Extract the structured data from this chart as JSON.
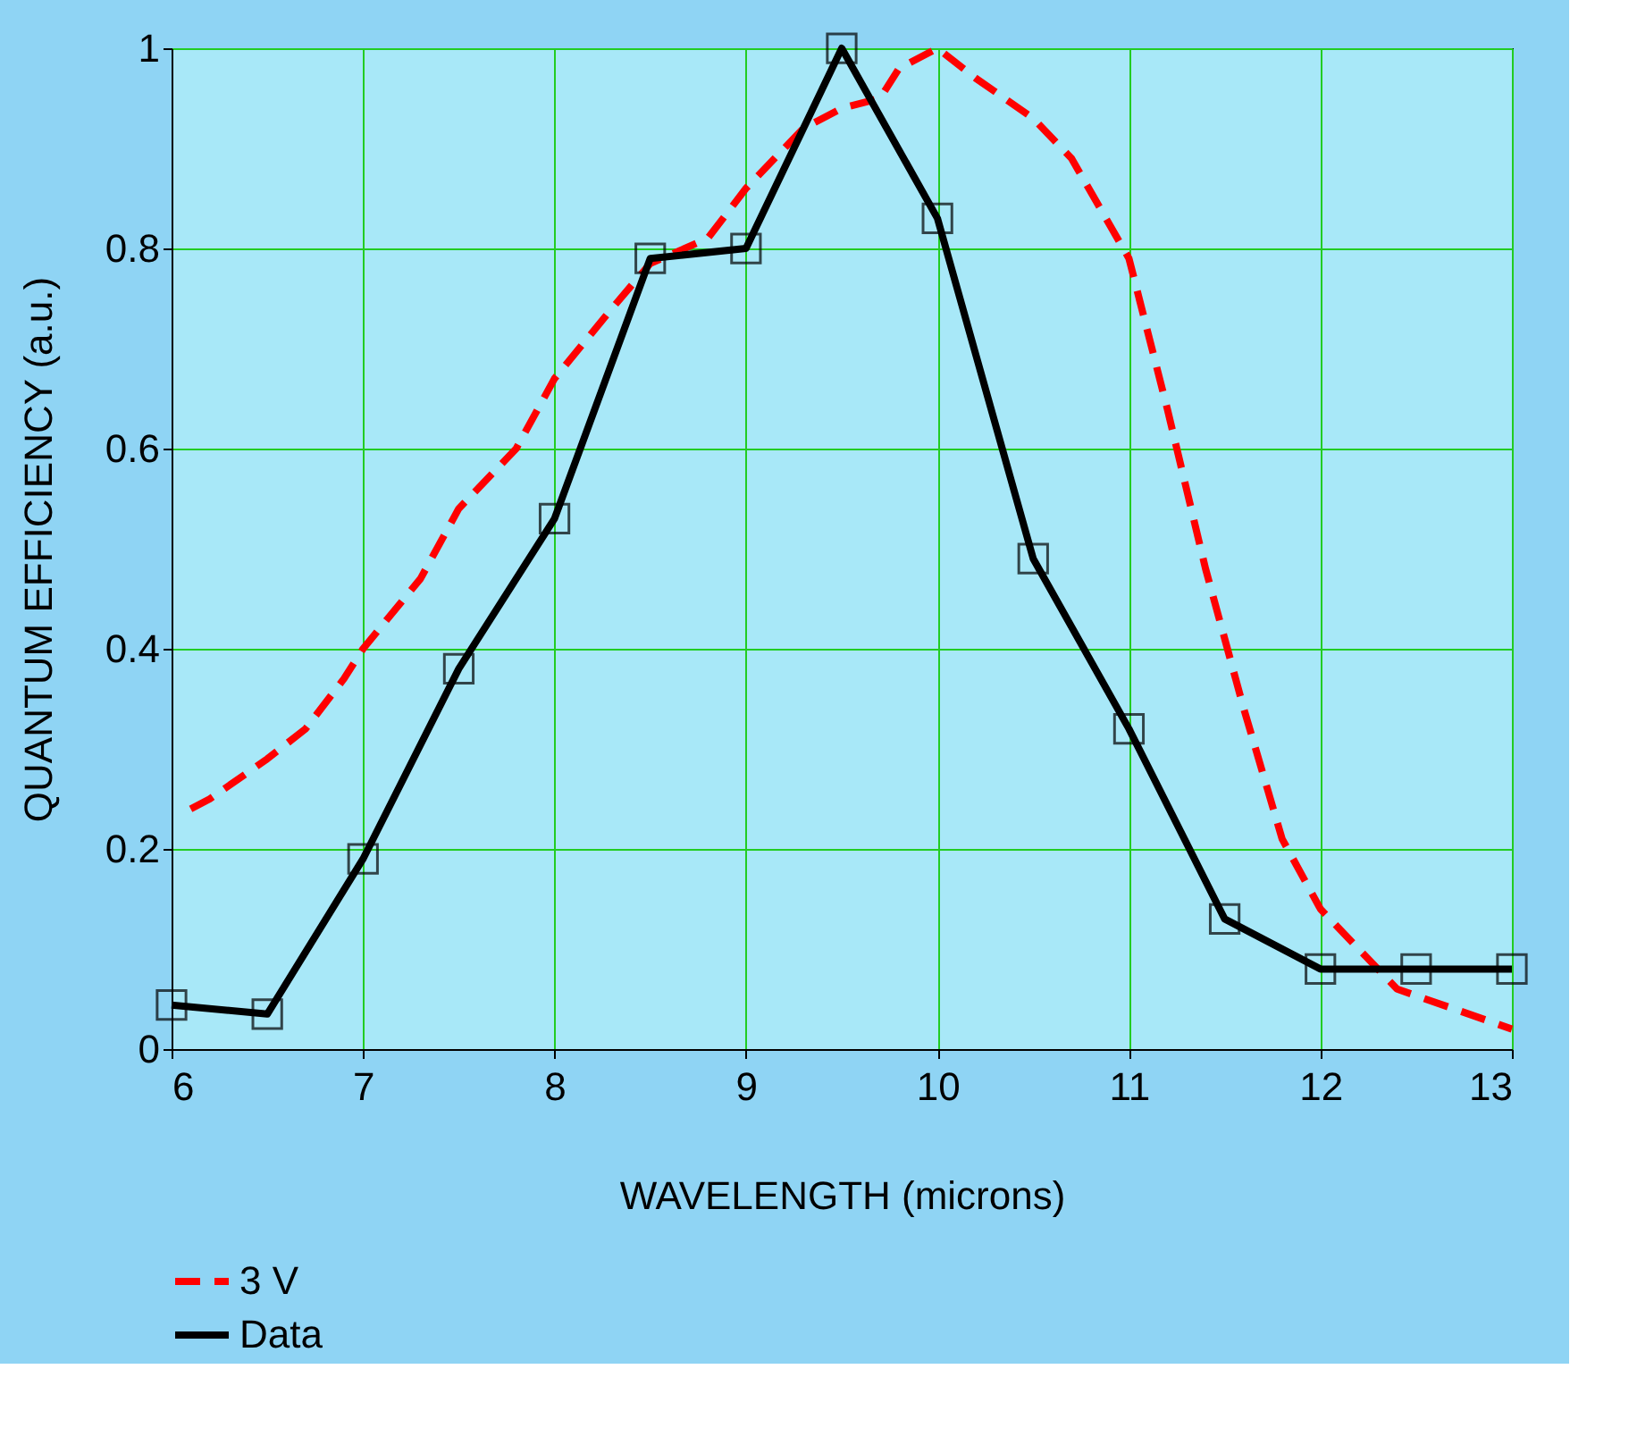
{
  "chart_data": {
    "type": "line",
    "xlabel": "WAVELENGTH (microns)",
    "ylabel": "QUANTUM EFFICIENCY (a.u.)",
    "xlim": [
      6,
      13
    ],
    "ylim": [
      0,
      1
    ],
    "xticks": [
      6,
      7,
      8,
      9,
      10,
      11,
      12,
      13
    ],
    "yticks": [
      0,
      0.2,
      0.4,
      0.6,
      0.8,
      1
    ],
    "grid": true,
    "legend": "bottom left",
    "series": [
      {
        "name": "3 V",
        "color": "#ff0000",
        "line_style": "dashed",
        "marker": "none",
        "x": [
          6.1,
          6.2,
          6.5,
          6.7,
          6.9,
          7.0,
          7.3,
          7.5,
          7.8,
          8.0,
          8.3,
          8.5,
          8.8,
          9.0,
          9.3,
          9.5,
          9.7,
          9.8,
          10.0,
          10.2,
          10.5,
          10.7,
          11.0,
          11.2,
          11.4,
          11.6,
          11.8,
          12.0,
          12.2,
          12.4,
          12.7,
          13.0
        ],
        "values": [
          0.24,
          0.25,
          0.29,
          0.32,
          0.37,
          0.4,
          0.47,
          0.54,
          0.6,
          0.67,
          0.74,
          0.785,
          0.81,
          0.86,
          0.92,
          0.94,
          0.95,
          0.98,
          1.0,
          0.97,
          0.93,
          0.89,
          0.79,
          0.64,
          0.48,
          0.34,
          0.21,
          0.14,
          0.1,
          0.06,
          0.04,
          0.02
        ]
      },
      {
        "name": "Data",
        "color": "#000000",
        "line_style": "solid",
        "marker": "square",
        "x": [
          6,
          6.5,
          7,
          7.5,
          8,
          8.5,
          9,
          9.5,
          10,
          10.5,
          11,
          11.5,
          12,
          12.5,
          13
        ],
        "values": [
          0.044,
          0.035,
          0.19,
          0.38,
          0.53,
          0.79,
          0.8,
          1.0,
          0.83,
          0.49,
          0.32,
          0.13,
          0.08,
          0.08,
          0.08
        ]
      }
    ]
  }
}
